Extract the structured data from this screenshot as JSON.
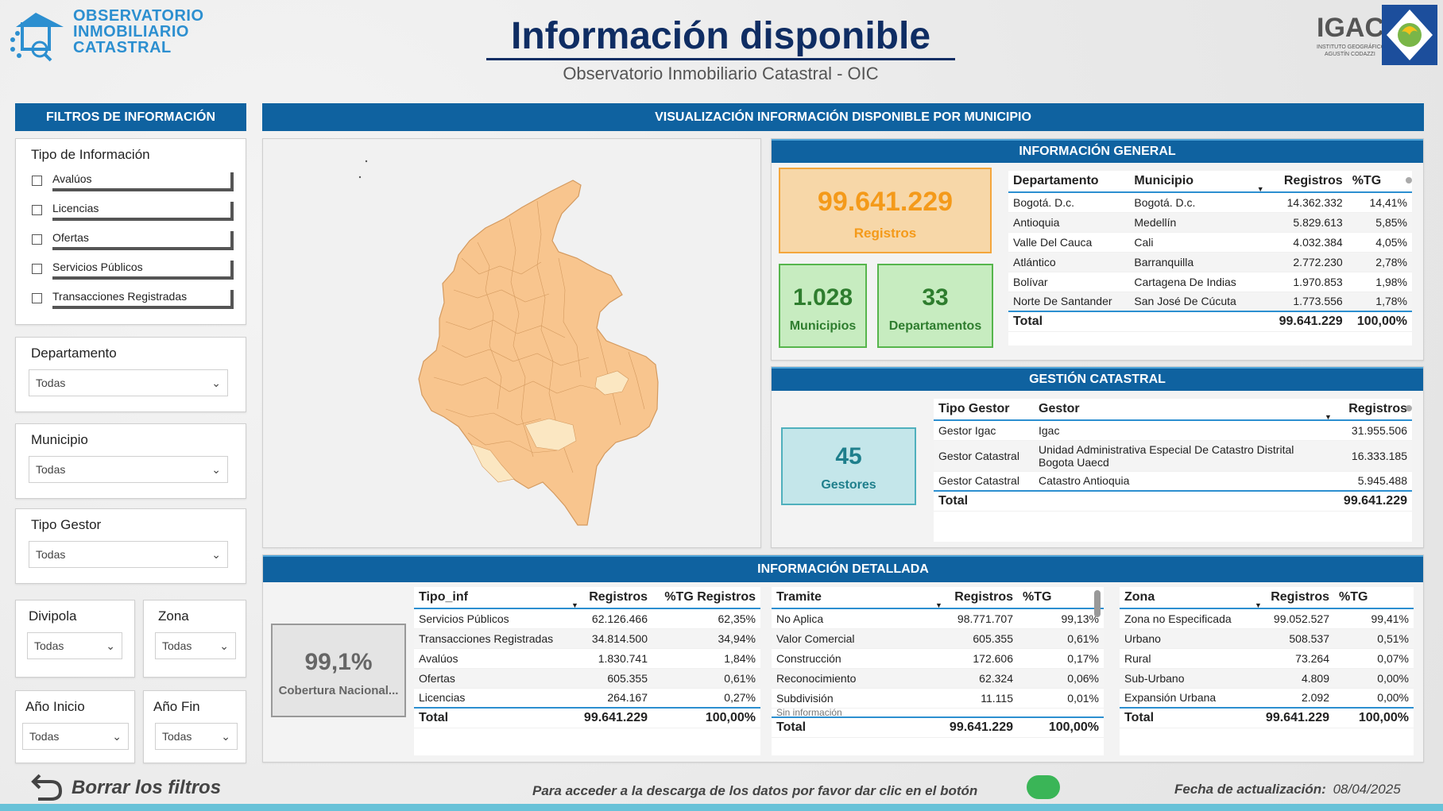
{
  "header": {
    "logo_line1": "OBSERVATORIO",
    "logo_line2": "INMOBILIARIO",
    "logo_line3": "CATASTRAL",
    "title": "Información disponible",
    "subtitle": "Observatorio Inmobiliario Catastral - OIC",
    "igac_logo": "IGAC",
    "igac_sub1": "INSTITUTO GEOGRÁFICO",
    "igac_sub2": "AGUSTÍN CODAZZI"
  },
  "filters": {
    "title": "FILTROS DE INFORMACIÓN",
    "tipo_info": {
      "label": "Tipo de Información",
      "options": [
        "Avalúos",
        "Licencias",
        "Ofertas",
        "Servicios Públicos",
        "Transacciones Registradas"
      ]
    },
    "departamento": {
      "label": "Departamento",
      "value": "Todas"
    },
    "municipio": {
      "label": "Municipio",
      "value": "Todas"
    },
    "tipo_gestor": {
      "label": "Tipo Gestor",
      "value": "Todas"
    },
    "divipola": {
      "label": "Divipola",
      "value": "Todas"
    },
    "zona": {
      "label": "Zona",
      "value": "Todas"
    },
    "anio_inicio": {
      "label": "Año Inicio",
      "value": "Todas"
    },
    "anio_fin": {
      "label": "Año Fin",
      "value": "Todas"
    },
    "clear_label": "Borrar los filtros"
  },
  "main_bar": "VISUALIZACIÓN INFORMACIÓN DISPONIBLE POR MUNICIPIO",
  "general": {
    "title": "INFORMACIÓN GENERAL",
    "registros_value": "99.641.229",
    "registros_label": "Registros",
    "municipios_value": "1.028",
    "municipios_label": "Municipios",
    "departamentos_value": "33",
    "departamentos_label": "Departamentos",
    "table": {
      "headers": [
        "Departamento",
        "Municipio",
        "Registros",
        "%TG"
      ],
      "rows": [
        [
          "Bogotá. D.c.",
          "Bogotá. D.c.",
          "14.362.332",
          "14,41%"
        ],
        [
          "Antioquia",
          "Medellín",
          "5.829.613",
          "5,85%"
        ],
        [
          "Valle Del Cauca",
          "Cali",
          "4.032.384",
          "4,05%"
        ],
        [
          "Atlántico",
          "Barranquilla",
          "2.772.230",
          "2,78%"
        ],
        [
          "Bolívar",
          "Cartagena De Indias",
          "1.970.853",
          "1,98%"
        ],
        [
          "Norte De Santander",
          "San José De Cúcuta",
          "1.773.556",
          "1,78%"
        ]
      ],
      "total_label": "Total",
      "total_registros": "99.641.229",
      "total_pct": "100,00%"
    }
  },
  "gestion": {
    "title": "GESTIÓN CATASTRAL",
    "gestores_value": "45",
    "gestores_label": "Gestores",
    "table": {
      "headers": [
        "Tipo Gestor",
        "Gestor",
        "Registros"
      ],
      "rows": [
        [
          "Gestor Igac",
          "Igac",
          "31.955.506"
        ],
        [
          "Gestor Catastral",
          "Unidad Administrativa Especial De Catastro Distrital Bogota Uaecd",
          "16.333.185"
        ],
        [
          "Gestor Catastral",
          "Catastro Antioquia",
          "5.945.488"
        ]
      ],
      "total_label": "Total",
      "total_registros": "99.641.229"
    }
  },
  "detallada": {
    "title": "INFORMACIÓN DETALLADA",
    "cobertura_value": "99,1%",
    "cobertura_label": "Cobertura Nacional...",
    "tipo_table": {
      "headers": [
        "Tipo_inf",
        "Registros",
        "%TG Registros"
      ],
      "rows": [
        [
          "Servicios Públicos",
          "62.126.466",
          "62,35%"
        ],
        [
          "Transacciones Registradas",
          "34.814.500",
          "34,94%"
        ],
        [
          "Avalúos",
          "1.830.741",
          "1,84%"
        ],
        [
          "Ofertas",
          "605.355",
          "0,61%"
        ],
        [
          "Licencias",
          "264.167",
          "0,27%"
        ]
      ],
      "total_label": "Total",
      "total_registros": "99.641.229",
      "total_pct": "100,00%"
    },
    "tramite_table": {
      "headers": [
        "Tramite",
        "Registros",
        "%TG"
      ],
      "rows": [
        [
          "No Aplica",
          "98.771.707",
          "99,13%"
        ],
        [
          "Valor Comercial",
          "605.355",
          "0,61%"
        ],
        [
          "Construcción",
          "172.606",
          "0,17%"
        ],
        [
          "Reconocimiento",
          "62.324",
          "0,06%"
        ],
        [
          "Subdivisión",
          "11.115",
          "0,01%"
        ]
      ],
      "cut_row": "Sin información",
      "total_label": "Total",
      "total_registros": "99.641.229",
      "total_pct": "100,00%"
    },
    "zona_table": {
      "headers": [
        "Zona",
        "Registros",
        "%TG"
      ],
      "rows": [
        [
          "Zona no Especificada",
          "99.052.527",
          "99,41%"
        ],
        [
          "Urbano",
          "508.537",
          "0,51%"
        ],
        [
          "Rural",
          "73.264",
          "0,07%"
        ],
        [
          "Sub-Urbano",
          "4.809",
          "0,00%"
        ],
        [
          "Expansión Urbana",
          "2.092",
          "0,00%"
        ]
      ],
      "total_label": "Total",
      "total_registros": "99.641.229",
      "total_pct": "100,00%"
    }
  },
  "footer": {
    "download_text": "Para acceder a la descarga de los datos por favor dar clic en el botón",
    "update_label": "Fecha de actualización:",
    "update_date": "08/04/2025"
  },
  "colors": {
    "brand_blue": "#0f62a0",
    "kpi_orange": "#f7a021",
    "kpi_green": "#3aa23a",
    "kpi_teal": "#1f8a9a",
    "map_fill": "#f8c58e",
    "toggle_green": "#3ab557"
  }
}
